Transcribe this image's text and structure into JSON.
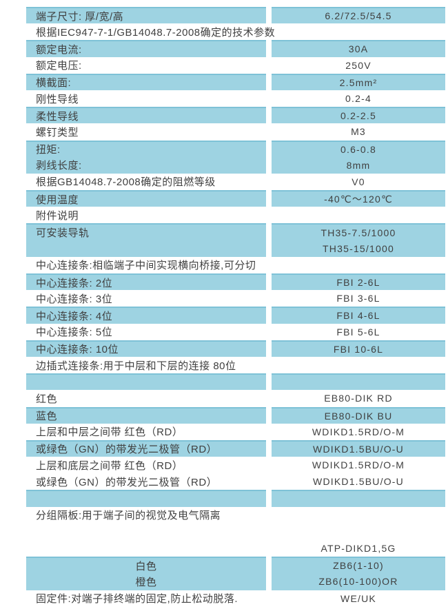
{
  "colors": {
    "row_blue": "#9ed3e2",
    "row_blue_border": "#7ec2d7",
    "text": "#404040",
    "page_bg": "#ffffff"
  },
  "table": {
    "columns": [
      "parameter",
      "value"
    ],
    "rows": [
      {
        "label": "端子尺寸: 厚/宽/高",
        "value": "6.2/72.5/54.5",
        "bg": "blue",
        "merge_top": false,
        "label_center": false
      },
      {
        "label": "根据IEC947-7-1/GB14048.7-2008确定的技术参数",
        "value": "",
        "bg": "white",
        "merge_top": false,
        "label_center": false
      },
      {
        "label": "额定电流:",
        "value": "30A",
        "bg": "blue",
        "merge_top": false,
        "label_center": false
      },
      {
        "label": "额定电压:",
        "value": "250V",
        "bg": "white",
        "merge_top": false,
        "label_center": false
      },
      {
        "label": "横截面:",
        "value": "2.5mm²",
        "bg": "blue",
        "merge_top": false,
        "label_center": false
      },
      {
        "label": "刚性导线",
        "value": "0.2-4",
        "bg": "white",
        "merge_top": false,
        "label_center": false
      },
      {
        "label": "柔性导线",
        "value": "0.2-2.5",
        "bg": "blue",
        "merge_top": false,
        "label_center": false
      },
      {
        "label": "螺钉类型",
        "value": "M3",
        "bg": "white",
        "merge_top": false,
        "label_center": false
      },
      {
        "label": "扭矩:",
        "value": "0.6-0.8",
        "bg": "blue",
        "merge_top": false,
        "label_center": false
      },
      {
        "label": "剥线长度:",
        "value": "8mm",
        "bg": "blue",
        "merge_top": true,
        "label_center": false
      },
      {
        "label": "根据GB14048.7-2008确定的阻燃等级",
        "value": "V0",
        "bg": "white",
        "merge_top": false,
        "label_center": false
      },
      {
        "label": "使用温度",
        "value": "-40℃～120℃",
        "bg": "blue",
        "merge_top": false,
        "label_center": false
      },
      {
        "label": "附件说明",
        "value": "",
        "bg": "white",
        "merge_top": false,
        "label_center": false
      },
      {
        "label": "可安装导轨",
        "value": "TH35-7.5/1000",
        "bg": "blue",
        "merge_top": false,
        "label_center": false
      },
      {
        "label": "",
        "value": "TH35-15/1000",
        "bg": "blue",
        "merge_top": true,
        "label_center": false
      },
      {
        "label": "中心连接条:相临端子中间实现横向桥接,可分切",
        "value": "",
        "bg": "white",
        "merge_top": false,
        "label_center": false
      },
      {
        "label": "中心连接条: 2位",
        "value": "FBI 2-6L",
        "bg": "blue",
        "merge_top": false,
        "label_center": false
      },
      {
        "label": "中心连接条: 3位",
        "value": "FBI 3-6L",
        "bg": "white",
        "merge_top": false,
        "label_center": false
      },
      {
        "label": "中心连接条: 4位",
        "value": "FBI 4-6L",
        "bg": "blue",
        "merge_top": false,
        "label_center": false
      },
      {
        "label": "中心连接条: 5位",
        "value": "FBI 5-6L",
        "bg": "white",
        "merge_top": false,
        "label_center": false
      },
      {
        "label": "中心连接条: 10位",
        "value": "FBI 10-6L",
        "bg": "blue",
        "merge_top": false,
        "label_center": false
      },
      {
        "label": "边插式连接条:用于中层和下层的连接  80位",
        "value": "",
        "bg": "white",
        "merge_top": false,
        "label_center": false
      },
      {
        "label": "",
        "value": "",
        "bg": "blue",
        "merge_top": false,
        "label_center": false
      },
      {
        "label": "红色",
        "value": "EB80-DIK RD",
        "bg": "white",
        "merge_top": false,
        "label_center": false
      },
      {
        "label": "蓝色",
        "value": "EB80-DIK BU",
        "bg": "blue",
        "merge_top": false,
        "label_center": false
      },
      {
        "label": "上层和中层之间带 红色（RD）",
        "value": "WDIKD1.5RD/O-M",
        "bg": "white",
        "merge_top": false,
        "label_center": false
      },
      {
        "label": "或绿色（GN）的带发光二极管（RD）",
        "value": "WDIKD1.5BU/O-U",
        "bg": "blue",
        "merge_top": false,
        "label_center": false
      },
      {
        "label": "上层和底层之间带 红色（RD）",
        "value": "WDIKD1.5RD/O-M",
        "bg": "white",
        "merge_top": false,
        "label_center": false
      },
      {
        "label": "或绿色（GN）的带发光二极管（RD）",
        "value": "WDIKD1.5BU/O-U",
        "bg": "white",
        "merge_top": false,
        "label_center": false
      },
      {
        "label": "",
        "value": "",
        "bg": "blue",
        "merge_top": false,
        "label_center": false
      },
      {
        "label": "分组隔板:用于端子间的视觉及电气隔离",
        "value": "",
        "bg": "white",
        "merge_top": false,
        "label_center": false
      },
      {
        "label": "",
        "value": "",
        "bg": "white",
        "merge_top": false,
        "label_center": false
      },
      {
        "label": "",
        "value": "ATP-DIKD1,5G",
        "bg": "white",
        "merge_top": false,
        "label_center": false
      },
      {
        "label": "白色",
        "value": "ZB6(1-10)",
        "bg": "blue",
        "merge_top": false,
        "label_center": true
      },
      {
        "label": "橙色",
        "value": "ZB6(10-100)OR",
        "bg": "blue",
        "merge_top": true,
        "label_center": true
      },
      {
        "label": "固定件:对端子排终端的固定,防止松动脱落.",
        "value": "WE/UK",
        "bg": "white",
        "merge_top": false,
        "label_center": false
      }
    ]
  }
}
